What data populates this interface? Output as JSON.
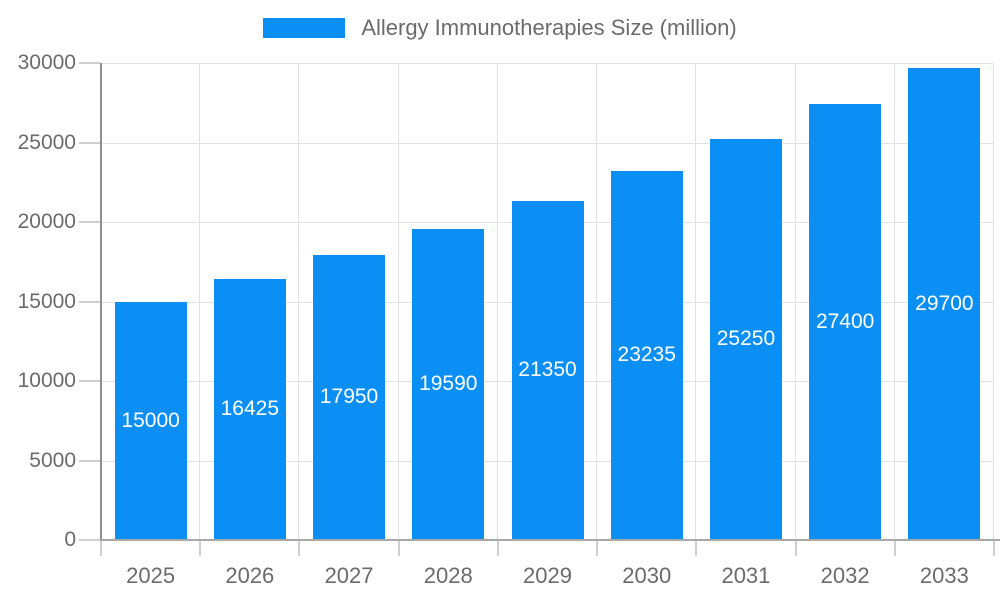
{
  "legend": {
    "label": "Allergy Immunotherapies Size (million)"
  },
  "colors": {
    "bar": "#0B8FF5",
    "bar_label_text": "#ffffff",
    "axis_label_text": "#6b6b6b",
    "legend_text": "#6b6b6b",
    "grid_line": "#e2e2e2",
    "tick_line": "#cfcfcf",
    "y_axis_line": "#8f8f8f",
    "x_axis_line": "#a8a8a8",
    "background": "#ffffff"
  },
  "chart_data": {
    "type": "bar",
    "title": "",
    "xlabel": "",
    "ylabel": "",
    "categories": [
      "2025",
      "2026",
      "2027",
      "2028",
      "2029",
      "2030",
      "2031",
      "2032",
      "2033"
    ],
    "series": [
      {
        "name": "Allergy Immunotherapies Size (million)",
        "values": [
          15000,
          16425,
          17950,
          19590,
          21350,
          23235,
          25250,
          27400,
          29700
        ]
      }
    ],
    "bar_labels_visible": true,
    "bar_label_position": "inside-center",
    "ylim": [
      0,
      30000
    ],
    "ytick_step": 5000,
    "yticks": [
      0,
      5000,
      10000,
      15000,
      20000,
      25000,
      30000
    ],
    "grid": true,
    "grid_vertical": true,
    "legend_position": "top-center"
  }
}
